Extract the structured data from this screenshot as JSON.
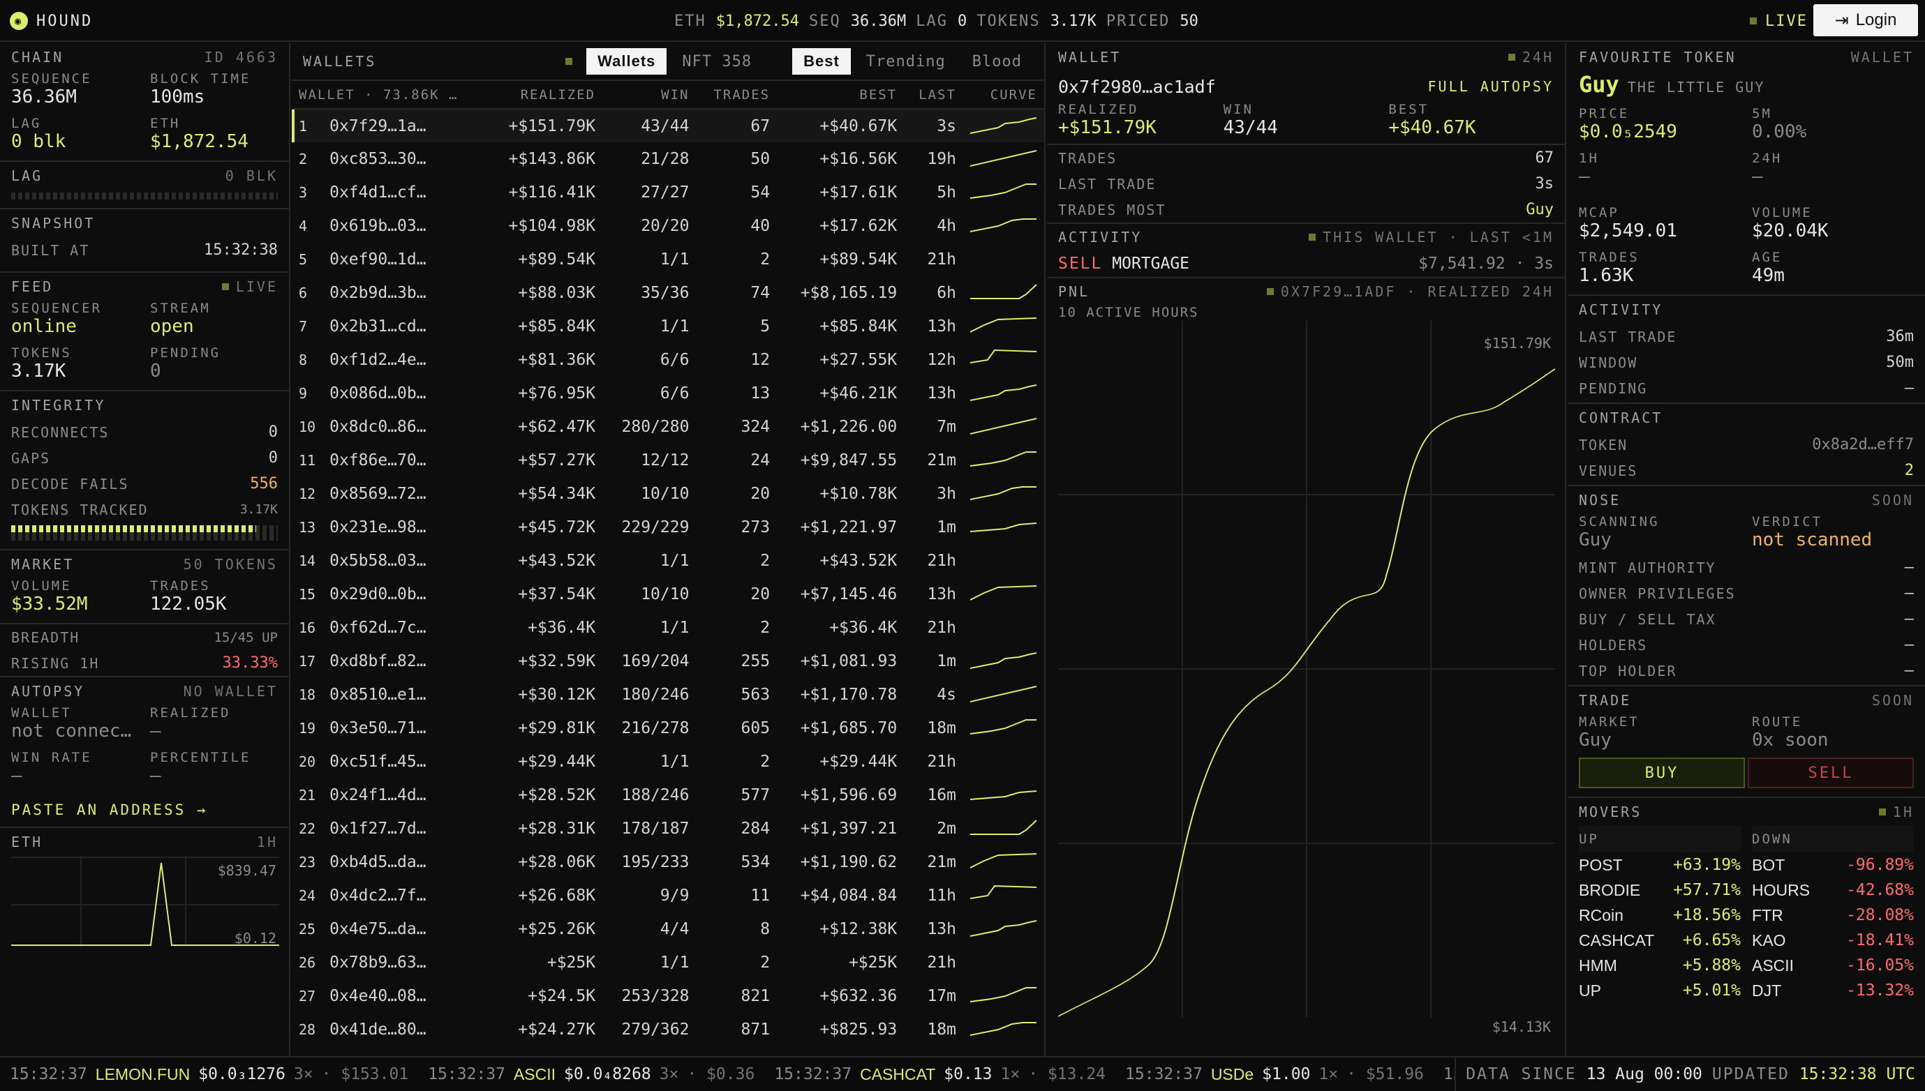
{
  "header": {
    "brand": "HOUND",
    "stats": [
      {
        "k": "ETH",
        "v": "$1,872.54",
        "y": true
      },
      {
        "k": "SEQ",
        "v": "36.36M"
      },
      {
        "k": "LAG",
        "v": "0"
      },
      {
        "k": "TOKENS",
        "v": "3.17K"
      },
      {
        "k": "PRICED",
        "v": "50"
      }
    ],
    "live": "LIVE",
    "login": "Login"
  },
  "chain": {
    "title": "CHAIN",
    "id": "ID 4663",
    "seq_l": "SEQUENCE",
    "seq": "36.36M",
    "bt_l": "BLOCK TIME",
    "bt": "100ms",
    "lag_l": "LAG",
    "lag": "0 blk",
    "eth_l": "ETH",
    "eth": "$1,872.54"
  },
  "lag": {
    "title": "LAG",
    "value": "0 BLK"
  },
  "snapshot": {
    "title": "SNAPSHOT",
    "built_l": "BUILT AT",
    "built": "15:32:38"
  },
  "feed": {
    "title": "FEED",
    "status": "LIVE",
    "seq_l": "SEQUENCER",
    "seq": "online",
    "stream_l": "STREAM",
    "stream": "open",
    "tokens_l": "TOKENS",
    "tokens": "3.17K",
    "pending_l": "PENDING",
    "pending": "0"
  },
  "integrity": {
    "title": "INTEGRITY",
    "rows": [
      {
        "k": "RECONNECTS",
        "v": "0"
      },
      {
        "k": "GAPS",
        "v": "0"
      },
      {
        "k": "DECODE FAILS",
        "v": "556"
      }
    ],
    "tracked_l": "TOKENS TRACKED",
    "tracked": "3.17K"
  },
  "market": {
    "title": "MARKET",
    "count": "50 TOKENS",
    "vol_l": "VOLUME",
    "vol": "$33.52M",
    "tr_l": "TRADES",
    "tr": "122.05K",
    "breadth_l": "BREADTH",
    "breadth": "15/45 UP",
    "rising_l": "RISING 1H",
    "rising": "33.33%"
  },
  "autopsy": {
    "title": "AUTOPSY",
    "status": "NO WALLET",
    "wallet_l": "WALLET",
    "wallet": "not connec…",
    "real_l": "REALIZED",
    "real": "—",
    "wr_l": "WIN RATE",
    "wr": "—",
    "pct_l": "PERCENTILE",
    "pct": "—",
    "paste": "PASTE AN ADDRESS →"
  },
  "eth_mini": {
    "title": "ETH",
    "range": "1H",
    "hi": "$839.47",
    "lo": "$0.12"
  },
  "wallets": {
    "title": "WALLETS",
    "tabs": [
      "Wallets",
      "NFT 358"
    ],
    "sorts": [
      "Best",
      "Trending",
      "Blood"
    ],
    "cols": [
      "WALLET · 73.86K …",
      "REALIZED",
      "WIN",
      "TRADES",
      "BEST",
      "LAST",
      "CURVE"
    ],
    "rows": [
      [
        "1",
        "0x7f29…1a…",
        "+$151.79K",
        "43/44",
        "67",
        "+$40.67K",
        "3s"
      ],
      [
        "2",
        "0xc853…30…",
        "+$143.86K",
        "21/28",
        "50",
        "+$16.56K",
        "19h"
      ],
      [
        "3",
        "0xf4d1…cf…",
        "+$116.41K",
        "27/27",
        "54",
        "+$17.61K",
        "5h"
      ],
      [
        "4",
        "0x619b…03…",
        "+$104.98K",
        "20/20",
        "40",
        "+$17.62K",
        "4h"
      ],
      [
        "5",
        "0xef90…1d…",
        "+$89.54K",
        "1/1",
        "2",
        "+$89.54K",
        "21h"
      ],
      [
        "6",
        "0x2b9d…3b…",
        "+$88.03K",
        "35/36",
        "74",
        "+$8,165.19",
        "6h"
      ],
      [
        "7",
        "0x2b31…cd…",
        "+$85.84K",
        "1/1",
        "5",
        "+$85.84K",
        "13h"
      ],
      [
        "8",
        "0xf1d2…4e…",
        "+$81.36K",
        "6/6",
        "12",
        "+$27.55K",
        "12h"
      ],
      [
        "9",
        "0x086d…0b…",
        "+$76.95K",
        "6/6",
        "13",
        "+$46.21K",
        "13h"
      ],
      [
        "10",
        "0x8dc0…86…",
        "+$62.47K",
        "280/280",
        "324",
        "+$1,226.00",
        "7m"
      ],
      [
        "11",
        "0xf86e…70…",
        "+$57.27K",
        "12/12",
        "24",
        "+$9,847.55",
        "21m"
      ],
      [
        "12",
        "0x8569…72…",
        "+$54.34K",
        "10/10",
        "20",
        "+$10.78K",
        "3h"
      ],
      [
        "13",
        "0x231e…98…",
        "+$45.72K",
        "229/229",
        "273",
        "+$1,221.97",
        "1m"
      ],
      [
        "14",
        "0x5b58…03…",
        "+$43.52K",
        "1/1",
        "2",
        "+$43.52K",
        "21h"
      ],
      [
        "15",
        "0x29d0…0b…",
        "+$37.54K",
        "10/10",
        "20",
        "+$7,145.46",
        "13h"
      ],
      [
        "16",
        "0xf62d…7c…",
        "+$36.4K",
        "1/1",
        "2",
        "+$36.4K",
        "21h"
      ],
      [
        "17",
        "0xd8bf…82…",
        "+$32.59K",
        "169/204",
        "255",
        "+$1,081.93",
        "1m"
      ],
      [
        "18",
        "0x8510…e1…",
        "+$30.12K",
        "180/246",
        "563",
        "+$1,170.78",
        "4s"
      ],
      [
        "19",
        "0x3e50…71…",
        "+$29.81K",
        "216/278",
        "605",
        "+$1,685.70",
        "18m"
      ],
      [
        "20",
        "0xc51f…45…",
        "+$29.44K",
        "1/1",
        "2",
        "+$29.44K",
        "21h"
      ],
      [
        "21",
        "0x24f1…4d…",
        "+$28.52K",
        "188/246",
        "577",
        "+$1,596.69",
        "16m"
      ],
      [
        "22",
        "0x1f27…7d…",
        "+$28.31K",
        "178/187",
        "284",
        "+$1,397.21",
        "2m"
      ],
      [
        "23",
        "0xb4d5…da…",
        "+$28.06K",
        "195/233",
        "534",
        "+$1,190.62",
        "21m"
      ],
      [
        "24",
        "0x4dc2…7f…",
        "+$26.68K",
        "9/9",
        "11",
        "+$4,084.84",
        "11h"
      ],
      [
        "25",
        "0x4e75…da…",
        "+$25.26K",
        "4/4",
        "8",
        "+$12.38K",
        "13h"
      ],
      [
        "26",
        "0x78b9…63…",
        "+$25K",
        "1/1",
        "2",
        "+$25K",
        "21h"
      ],
      [
        "27",
        "0x4e40…08…",
        "+$24.5K",
        "253/328",
        "821",
        "+$632.36",
        "17m"
      ],
      [
        "28",
        "0x41de…80…",
        "+$24.27K",
        "279/362",
        "871",
        "+$825.93",
        "18m"
      ]
    ],
    "curves": [
      1,
      1,
      1,
      1,
      0,
      1,
      1,
      1,
      1,
      1,
      1,
      1,
      1,
      0,
      1,
      0,
      1,
      1,
      1,
      0,
      1,
      1,
      1,
      1,
      1,
      0,
      1,
      1
    ]
  },
  "wallet": {
    "title": "WALLET",
    "range": "24H",
    "addr": "0x7f2980…ac1adf",
    "autopsy": "FULL AUTOPSY",
    "real_l": "REALIZED",
    "real": "+$151.79K",
    "win_l": "WIN",
    "win": "43/44",
    "best_l": "BEST",
    "best": "+$40.67K",
    "rows": [
      {
        "k": "TRADES",
        "v": "67"
      },
      {
        "k": "LAST TRADE",
        "v": "3s"
      },
      {
        "k": "TRADES MOST",
        "v": "Guy"
      }
    ],
    "act_title": "ACTIVITY",
    "act_meta": "THIS WALLET · LAST <1M",
    "act_side": "SELL",
    "act_token": "MORTGAGE",
    "act_amt": "$7,541.92 · 3s",
    "pnl_title": "PNL",
    "pnl_meta": "0X7F29…1ADF · REALIZED 24H",
    "pnl_sub": "10 ACTIVE HOURS",
    "pnl_hi": "$151.79K",
    "pnl_lo": "$14.13K"
  },
  "fav": {
    "title": "FAVOURITE TOKEN",
    "tag": "WALLET",
    "sym": "Guy",
    "name": "THE LITTLE GUY",
    "price_l": "PRICE",
    "price": "$0.0₅2549",
    "m5_l": "5M",
    "m5": "0.00%",
    "h1_l": "1H",
    "h1": "—",
    "h24_l": "24H",
    "h24": "—",
    "mcap_l": "MCAP",
    "mcap": "$2,549.01",
    "vol_l": "VOLUME",
    "vol": "$20.04K",
    "tr_l": "TRADES",
    "tr": "1.63K",
    "age_l": "AGE",
    "age": "49m"
  },
  "activity": {
    "title": "ACTIVITY",
    "rows": [
      {
        "k": "LAST TRADE",
        "v": "36m"
      },
      {
        "k": "WINDOW",
        "v": "50m"
      },
      {
        "k": "PENDING",
        "v": "—"
      }
    ]
  },
  "contract": {
    "title": "CONTRACT",
    "rows": [
      {
        "k": "TOKEN",
        "v": "0x8a2d…eff7"
      },
      {
        "k": "VENUES",
        "v": "2"
      }
    ]
  },
  "nose": {
    "title": "NOSE",
    "tag": "SOON",
    "scan_l": "SCANNING",
    "scan": "Guy",
    "verdict_l": "VERDICT",
    "verdict": "not scanned",
    "rows": [
      {
        "k": "MINT AUTHORITY",
        "v": "—"
      },
      {
        "k": "OWNER PRIVILEGES",
        "v": "—"
      },
      {
        "k": "BUY / SELL TAX",
        "v": "—"
      },
      {
        "k": "HOLDERS",
        "v": "—"
      },
      {
        "k": "TOP HOLDER",
        "v": "—"
      }
    ]
  },
  "trade": {
    "title": "TRADE",
    "tag": "SOON",
    "market_l": "MARKET",
    "market": "Guy",
    "route_l": "ROUTE",
    "route": "0x soon",
    "buy": "BUY",
    "sell": "SELL"
  },
  "movers": {
    "title": "MOVERS",
    "range": "1H",
    "up_l": "UP",
    "down_l": "DOWN",
    "up": [
      [
        "POST",
        "+63.19%"
      ],
      [
        "BRODIE",
        "+57.71%"
      ],
      [
        "RCoin",
        "+18.56%"
      ],
      [
        "CASHCAT",
        "+6.65%"
      ],
      [
        "HMM",
        "+5.88%"
      ],
      [
        "UP",
        "+5.01%"
      ]
    ],
    "down": [
      [
        "BOT",
        "-96.89%"
      ],
      [
        "HOURS",
        "-42.68%"
      ],
      [
        "FTR",
        "-28.08%"
      ],
      [
        "KAO",
        "-18.41%"
      ],
      [
        "ASCII",
        "-16.05%"
      ],
      [
        "DJT",
        "-13.32%"
      ]
    ]
  },
  "ticker": [
    {
      "t": "15:32:37",
      "s": "LEMON.FUN",
      "p": "$0.0₃1276",
      "x": "3×",
      "a": "$153.01"
    },
    {
      "t": "15:32:37",
      "s": "ASCII",
      "p": "$0.0₄8268",
      "x": "3×",
      "a": "$0.36"
    },
    {
      "t": "15:32:37",
      "s": "CASHCAT",
      "p": "$0.13",
      "x": "1×",
      "a": "$13.24"
    },
    {
      "t": "15:32:37",
      "s": "USDe",
      "p": "$1.00",
      "x": "1×",
      "a": "$51.96"
    },
    {
      "t": "15:32:37",
      "s": "",
      "p": "",
      "x": "",
      "a": ""
    }
  ],
  "footer": {
    "since_l": "DATA SINCE",
    "since": "13 Aug 00:00",
    "upd_l": "UPDATED",
    "upd": "15:32:38 UTC"
  }
}
